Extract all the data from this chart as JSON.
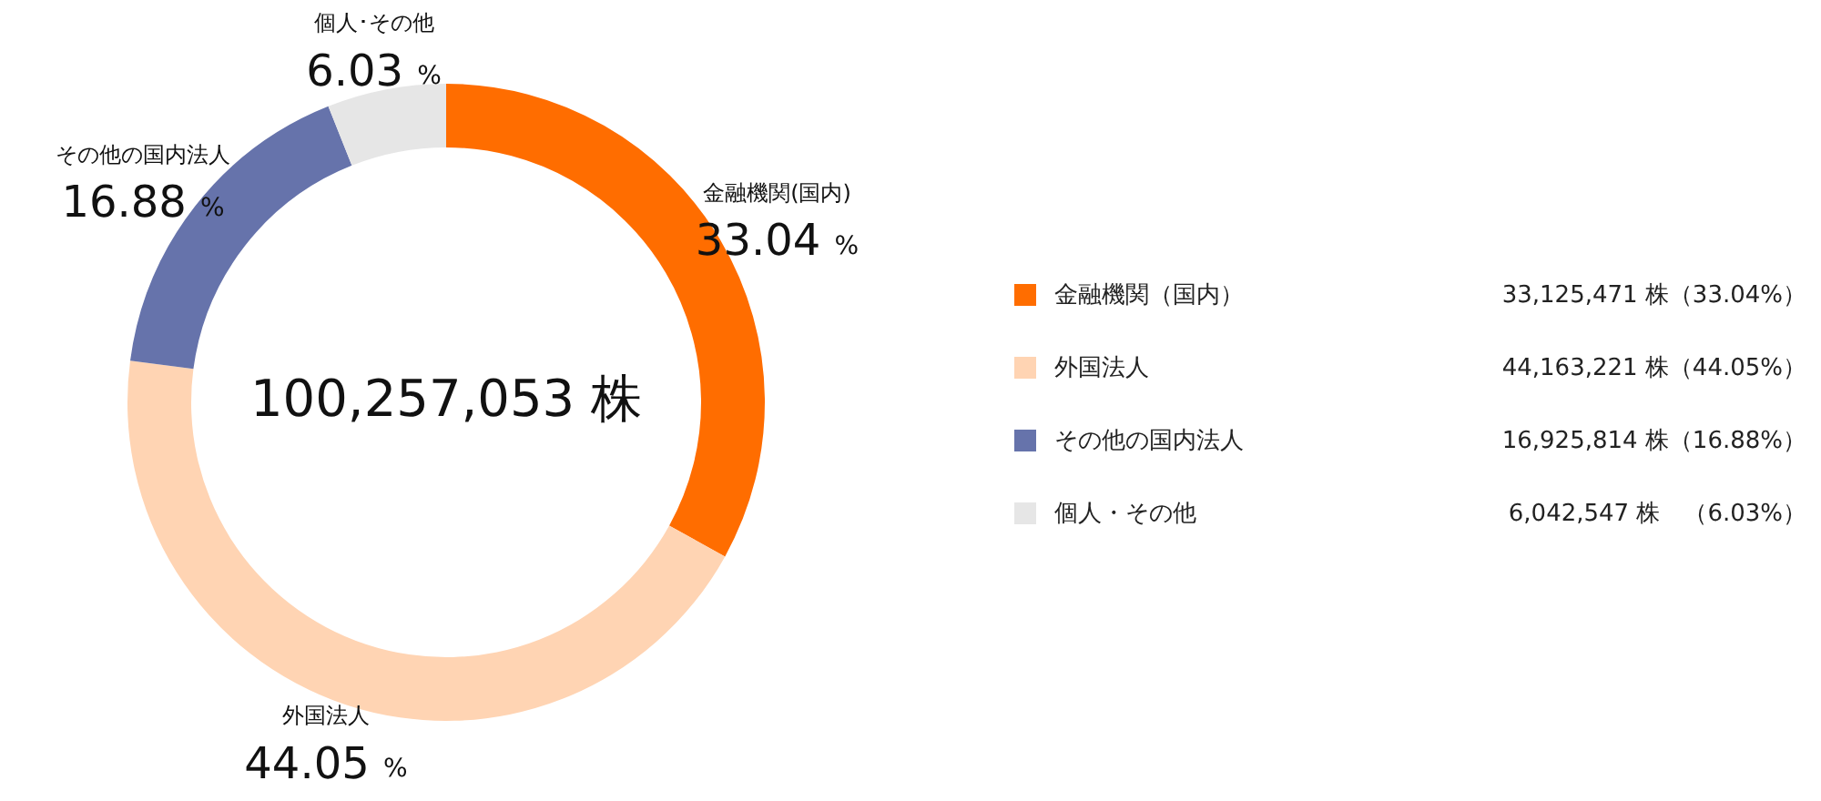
{
  "chart_data": {
    "type": "donut",
    "title": "100,257,053 株",
    "categories": [
      "金融機関（国内）",
      "外国法人",
      "その他の国内法人",
      "個人・その他"
    ],
    "values": [
      33.04,
      44.05,
      16.88,
      6.03
    ],
    "colors": [
      "#ff6d00",
      "#ffd4b3",
      "#6673ab",
      "#e6e6e6"
    ],
    "value_labels": [
      "33.04 %",
      "44.05 %",
      "16.88 %",
      "6.03 %"
    ],
    "annotations": [
      "金融機関(国内)",
      "外国法人",
      "その他の国内法人",
      "個人･その他",
      "33,125,471 株（33.04%）",
      "44,163,221 株（44.05%）",
      "16,925,814 株（16.88%）",
      "6,042,547 株　（6.03%）"
    ],
    "legend": "right"
  }
}
